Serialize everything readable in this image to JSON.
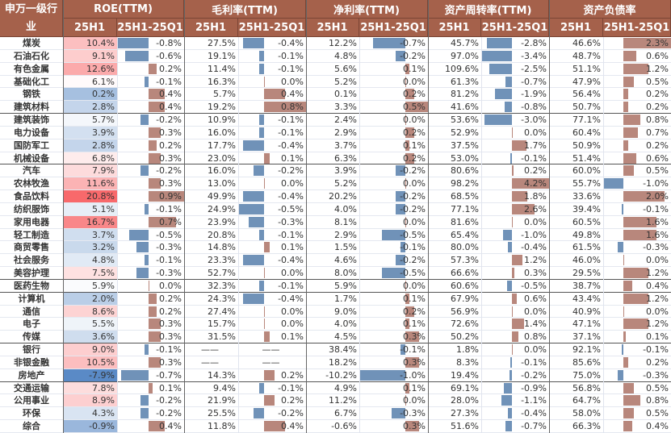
{
  "header": {
    "industry": "申万一级行业",
    "groups": [
      "ROE(TTM)",
      "毛利率(TTM)",
      "净利率(TTM)",
      "资产周转率(TTM)",
      "资产负债率"
    ],
    "sub": [
      "25H1",
      "25H1-25Q1"
    ]
  },
  "colors": {
    "header_bg": "#a5614b",
    "neg_bar": "#7092b8",
    "pos_bar": "#b8877c",
    "heat_high": "#f8696b",
    "heat_low": "#5a8ac6"
  },
  "rows": [
    {
      "name": "煤炭",
      "v": [
        "10.4%",
        "-0.8%",
        "27.5%",
        "-0.4%",
        "12.2%",
        "-0.7%",
        "45.7%",
        "-2.8%",
        "46.6%",
        "2.3%"
      ]
    },
    {
      "name": "石油石化",
      "v": [
        "9.1%",
        "-0.6%",
        "19.1%",
        "-0.1%",
        "4.8%",
        "-0.2%",
        "97.0%",
        "-3.4%",
        "48.7%",
        "0.6%"
      ]
    },
    {
      "name": "有色金属",
      "v": [
        "12.6%",
        "0.2%",
        "11.4%",
        "-0.1%",
        "5.6%",
        "0.1%",
        "109.6%",
        "-2.5%",
        "51.1%",
        "1.2%"
      ]
    },
    {
      "name": "基础化工",
      "v": [
        "6.1%",
        "-0.1%",
        "16.3%",
        "0.0%",
        "5.2%",
        "0.0%",
        "61.3%",
        "-0.7%",
        "47.9%",
        "0.5%"
      ]
    },
    {
      "name": "钢铁",
      "v": [
        "0.2%",
        "0.4%",
        "5.7%",
        "0.4%",
        "0.1%",
        "0.2%",
        "81.2%",
        "-1.9%",
        "56.4%",
        "0.2%"
      ]
    },
    {
      "name": "建筑材料",
      "v": [
        "2.8%",
        "0.4%",
        "19.2%",
        "0.8%",
        "3.3%",
        "0.5%",
        "41.6%",
        "-0.8%",
        "50.7%",
        "0.2%"
      ]
    },
    {
      "name": "建筑装饰",
      "v": [
        "5.7%",
        "-0.2%",
        "10.9%",
        "-0.1%",
        "2.4%",
        "0.0%",
        "53.6%",
        "-3.0%",
        "77.1%",
        "0.8%"
      ]
    },
    {
      "name": "电力设备",
      "v": [
        "3.9%",
        "0.3%",
        "16.0%",
        "-0.1%",
        "2.9%",
        "0.2%",
        "52.9%",
        "0.0%",
        "60.4%",
        "0.7%"
      ]
    },
    {
      "name": "国防军工",
      "v": [
        "2.8%",
        "0.2%",
        "17.7%",
        "-0.4%",
        "3.7%",
        "0.1%",
        "37.5%",
        "1.7%",
        "50.9%",
        "0.2%"
      ]
    },
    {
      "name": "机械设备",
      "v": [
        "6.8%",
        "0.3%",
        "23.0%",
        "0.1%",
        "6.3%",
        "0.2%",
        "53.0%",
        "-0.1%",
        "51.4%",
        "0.6%"
      ]
    },
    {
      "name": "汽车",
      "v": [
        "7.9%",
        "-0.2%",
        "16.0%",
        "-0.2%",
        "3.9%",
        "-0.2%",
        "80.6%",
        "0.2%",
        "60.0%",
        "0.5%"
      ]
    },
    {
      "name": "农林牧渔",
      "v": [
        "11.6%",
        "0.3%",
        "13.0%",
        "0.0%",
        "5.2%",
        "0.0%",
        "98.2%",
        "4.2%",
        "55.7%",
        "-1.0%"
      ]
    },
    {
      "name": "食品饮料",
      "v": [
        "20.8%",
        "0.9%",
        "49.9%",
        "-0.4%",
        "20.2%",
        "-0.2%",
        "68.5%",
        "1.8%",
        "33.6%",
        "2.0%"
      ]
    },
    {
      "name": "纺织服饰",
      "v": [
        "5.1%",
        "-0.1%",
        "24.9%",
        "-0.5%",
        "4.0%",
        "-0.2%",
        "77.1%",
        "2.6%",
        "39.4%",
        "-0.1%"
      ]
    },
    {
      "name": "家用电器",
      "v": [
        "16.7%",
        "0.7%",
        "23.9%",
        "-0.3%",
        "8.1%",
        "0.0%",
        "81.6%",
        "0.0%",
        "60.5%",
        "1.6%"
      ]
    },
    {
      "name": "轻工制造",
      "v": [
        "3.7%",
        "-0.5%",
        "20.8%",
        "-0.1%",
        "2.9%",
        "-0.5%",
        "65.4%",
        "-1.0%",
        "49.8%",
        "1.6%"
      ]
    },
    {
      "name": "商贸零售",
      "v": [
        "3.2%",
        "-0.3%",
        "14.8%",
        "0.1%",
        "1.5%",
        "-0.1%",
        "80.0%",
        "-0.4%",
        "61.5%",
        "-0.3%"
      ]
    },
    {
      "name": "社会服务",
      "v": [
        "4.8%",
        "-0.1%",
        "23.3%",
        "-0.4%",
        "4.6%",
        "-0.2%",
        "57.3%",
        "1.2%",
        "46.0%",
        "0.0%"
      ]
    },
    {
      "name": "美容护理",
      "v": [
        "7.5%",
        "-0.3%",
        "52.7%",
        "0.0%",
        "8.0%",
        "-0.5%",
        "66.6%",
        "0.3%",
        "29.5%",
        "1.2%"
      ]
    },
    {
      "name": "医药生物",
      "v": [
        "5.9%",
        "0.0%",
        "32.3%",
        "-0.1%",
        "5.9%",
        "0.0%",
        "60.6%",
        "-0.5%",
        "38.7%",
        "0.4%"
      ]
    },
    {
      "name": "计算机",
      "v": [
        "2.0%",
        "0.2%",
        "24.3%",
        "-0.4%",
        "1.7%",
        "0.1%",
        "67.9%",
        "0.6%",
        "43.4%",
        "1.2%"
      ]
    },
    {
      "name": "通信",
      "v": [
        "8.6%",
        "0.2%",
        "27.4%",
        "0.0%",
        "9.0%",
        "0.2%",
        "56.9%",
        "0.0%",
        "40.9%",
        "0.0%"
      ]
    },
    {
      "name": "电子",
      "v": [
        "5.5%",
        "0.3%",
        "15.7%",
        "0.0%",
        "4.0%",
        "0.1%",
        "72.6%",
        "1.4%",
        "47.1%",
        "1.2%"
      ]
    },
    {
      "name": "传媒",
      "v": [
        "3.6%",
        "0.3%",
        "31.5%",
        "0.1%",
        "4.5%",
        "0.3%",
        "50.2%",
        "0.8%",
        "37.1%",
        "0.1%"
      ]
    },
    {
      "name": "银行",
      "v": [
        "9.0%",
        "-0.1%",
        "——",
        "——",
        "38.4%",
        "-0.1%",
        "1.8%",
        "0.0%",
        "92.1%",
        "-0.1%"
      ]
    },
    {
      "name": "非银金融",
      "v": [
        "10.5%",
        "0.3%",
        "——",
        "——",
        "18.2%",
        "0.3%",
        "8.3%",
        "-0.1%",
        "85.6%",
        "0.2%"
      ]
    },
    {
      "name": "房地产",
      "v": [
        "-7.9%",
        "-0.7%",
        "14.3%",
        "0.2%",
        "-10.2%",
        "-1.0%",
        "19.4%",
        "-0.2%",
        "75.0%",
        "-0.3%"
      ]
    },
    {
      "name": "交通运输",
      "v": [
        "7.8%",
        "0.1%",
        "9.4%",
        "-0.1%",
        "4.9%",
        "0.1%",
        "69.1%",
        "-0.9%",
        "56.8%",
        "0.5%"
      ]
    },
    {
      "name": "公用事业",
      "v": [
        "8.9%",
        "-0.2%",
        "21.9%",
        "0.2%",
        "11.2%",
        "0.0%",
        "28.0%",
        "-1.1%",
        "64.7%",
        "0.8%"
      ]
    },
    {
      "name": "环保",
      "v": [
        "4.3%",
        "-0.2%",
        "25.5%",
        "-0.2%",
        "6.7%",
        "-0.3%",
        "27.3%",
        "-0.4%",
        "58.0%",
        "0.5%"
      ]
    },
    {
      "name": "综合",
      "v": [
        "-0.9%",
        "0.4%",
        "11.8%",
        "0.4%",
        "-0.6%",
        "0.3%",
        "51.6%",
        "-0.7%",
        "66.3%",
        "0.4%"
      ]
    }
  ]
}
